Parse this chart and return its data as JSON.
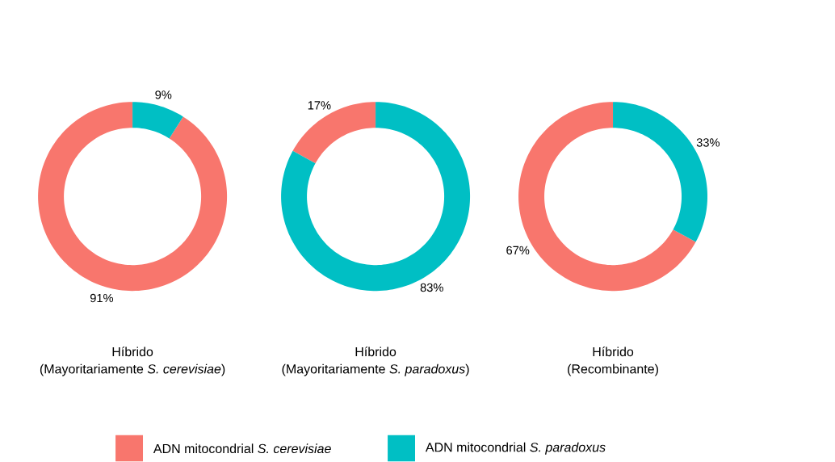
{
  "chart_data": [
    {
      "type": "donut",
      "title": "Híbrido",
      "subtitle": "(Mayoritariamente *S. cerevisiae*)",
      "categories": [
        null,
        null
      ],
      "values": [
        91,
        9
      ],
      "colors": [
        "#f8766d",
        "#00bfc4"
      ],
      "value_labels": [
        "91%",
        "9%"
      ],
      "legend": false
    },
    {
      "type": "donut",
      "title": "Híbrido",
      "subtitle": "(Mayoritariamente *S. paradoxus*)",
      "categories": [
        "ADN mitocondrial *S. cerevisiae*",
        "ADN mitocondrial *S. paradoxus*"
      ],
      "values": [
        17,
        83
      ],
      "colors": [
        "#f8766d",
        "#00bfc4"
      ],
      "value_labels": [
        "17%",
        "83%"
      ],
      "legend": "bottom"
    },
    {
      "type": "donut",
      "title": "Híbrido",
      "subtitle": "(Recombinante)",
      "categories": [
        null,
        null
      ],
      "values": [
        67,
        33
      ],
      "colors": [
        "#f8766d",
        "#00bfc4"
      ],
      "value_labels": [
        "67%",
        "33%"
      ],
      "legend": false
    }
  ]
}
